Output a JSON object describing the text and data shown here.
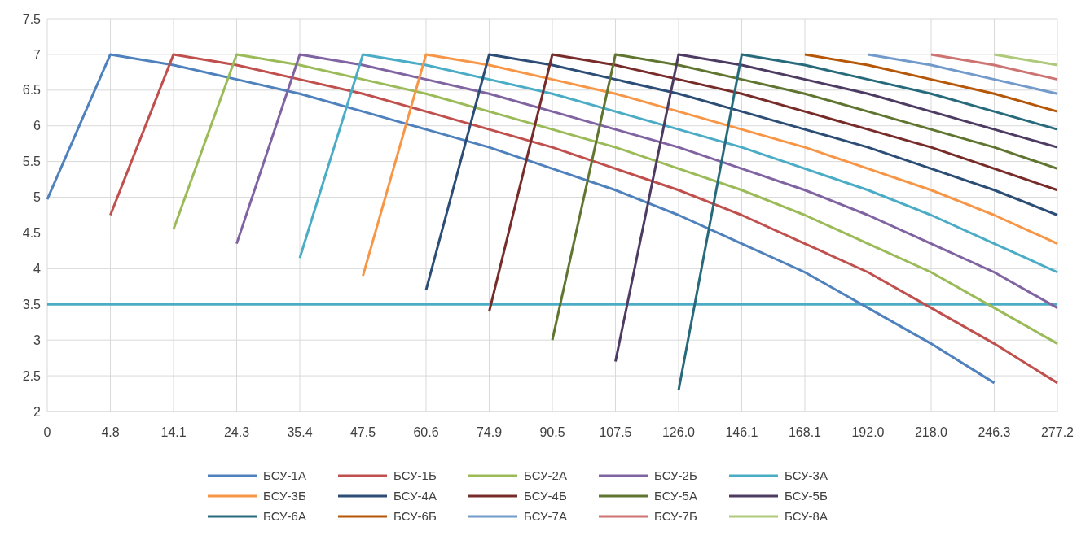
{
  "chart_data": {
    "type": "line",
    "categories": [
      "0",
      "4.8",
      "14.1",
      "24.3",
      "35.4",
      "47.5",
      "60.6",
      "74.9",
      "90.5",
      "107.5",
      "126.0",
      "146.1",
      "168.1",
      "192.0",
      "218.0",
      "246.3",
      "277.2"
    ],
    "ylim": [
      2,
      7.5
    ],
    "yticks": [
      2,
      2.5,
      3,
      3.5,
      4,
      4.5,
      5,
      5.5,
      6,
      6.5,
      7,
      7.5
    ],
    "grid": true,
    "legend": "bottom",
    "marker": "none",
    "line_style": "solid",
    "ref_lines": [
      {
        "axis": "y",
        "value": 3.5,
        "color": "#4bacc6"
      }
    ],
    "series": [
      {
        "name": "БСУ-1А",
        "color": "#4f81bd",
        "values": [
          4.97,
          7,
          6.85,
          6.65,
          6.45,
          6.2,
          5.95,
          5.7,
          5.4,
          5.1,
          4.75,
          4.35,
          3.95,
          3.45,
          2.95,
          2.4,
          null
        ]
      },
      {
        "name": "БСУ-1Б",
        "color": "#c0504d",
        "values": [
          null,
          4.75,
          7,
          6.85,
          6.65,
          6.45,
          6.2,
          5.95,
          5.7,
          5.4,
          5.1,
          4.75,
          4.35,
          3.95,
          3.45,
          2.95,
          2.4
        ]
      },
      {
        "name": "БСУ-2А",
        "color": "#9bbb59",
        "values": [
          null,
          null,
          4.55,
          7,
          6.85,
          6.65,
          6.45,
          6.2,
          5.95,
          5.7,
          5.4,
          5.1,
          4.75,
          4.35,
          3.95,
          3.45,
          2.95
        ]
      },
      {
        "name": "БСУ-2Б",
        "color": "#8064a2",
        "values": [
          null,
          null,
          null,
          4.35,
          7,
          6.85,
          6.65,
          6.45,
          6.2,
          5.95,
          5.7,
          5.4,
          5.1,
          4.75,
          4.35,
          3.95,
          3.45
        ]
      },
      {
        "name": "БСУ-3А",
        "color": "#4bacc6",
        "values": [
          null,
          null,
          null,
          null,
          4.15,
          7,
          6.85,
          6.65,
          6.45,
          6.2,
          5.95,
          5.7,
          5.4,
          5.1,
          4.75,
          4.35,
          3.95
        ]
      },
      {
        "name": "БСУ-3Б",
        "color": "#f79646",
        "values": [
          null,
          null,
          null,
          null,
          null,
          3.9,
          7,
          6.85,
          6.65,
          6.45,
          6.2,
          5.95,
          5.7,
          5.4,
          5.1,
          4.75,
          4.35
        ]
      },
      {
        "name": "БСУ-4А",
        "color": "#2c4d75",
        "values": [
          null,
          null,
          null,
          null,
          null,
          null,
          3.7,
          7,
          6.85,
          6.65,
          6.45,
          6.2,
          5.95,
          5.7,
          5.4,
          5.1,
          4.75
        ]
      },
      {
        "name": "БСУ-4Б",
        "color": "#772c2a",
        "values": [
          null,
          null,
          null,
          null,
          null,
          null,
          null,
          3.4,
          7,
          6.85,
          6.65,
          6.45,
          6.2,
          5.95,
          5.7,
          5.4,
          5.1
        ]
      },
      {
        "name": "БСУ-5А",
        "color": "#5f7530",
        "values": [
          null,
          null,
          null,
          null,
          null,
          null,
          null,
          null,
          3.0,
          7,
          6.85,
          6.65,
          6.45,
          6.2,
          5.95,
          5.7,
          5.4
        ]
      },
      {
        "name": "БСУ-5Б",
        "color": "#4d3b62",
        "values": [
          null,
          null,
          null,
          null,
          null,
          null,
          null,
          null,
          null,
          2.7,
          7,
          6.85,
          6.65,
          6.45,
          6.2,
          5.95,
          5.7
        ]
      },
      {
        "name": "БСУ-6А",
        "color": "#276a7c",
        "values": [
          null,
          null,
          null,
          null,
          null,
          null,
          null,
          null,
          null,
          null,
          2.3,
          7,
          6.85,
          6.65,
          6.45,
          6.2,
          5.95
        ]
      },
      {
        "name": "БСУ-6Б",
        "color": "#b65708",
        "values": [
          null,
          null,
          null,
          null,
          null,
          null,
          null,
          null,
          null,
          null,
          null,
          null,
          7,
          6.85,
          6.65,
          6.45,
          6.2
        ]
      },
      {
        "name": "БСУ-7А",
        "color": "#729aca",
        "values": [
          null,
          null,
          null,
          null,
          null,
          null,
          null,
          null,
          null,
          null,
          null,
          null,
          null,
          7,
          6.85,
          6.65,
          6.45
        ]
      },
      {
        "name": "БСУ-7Б",
        "color": "#cd7371",
        "values": [
          null,
          null,
          null,
          null,
          null,
          null,
          null,
          null,
          null,
          null,
          null,
          null,
          null,
          null,
          7,
          6.85,
          6.65
        ]
      },
      {
        "name": "БСУ-8А",
        "color": "#afc97a",
        "values": [
          null,
          null,
          null,
          null,
          null,
          null,
          null,
          null,
          null,
          null,
          null,
          null,
          null,
          null,
          null,
          7,
          6.85
        ]
      }
    ]
  }
}
